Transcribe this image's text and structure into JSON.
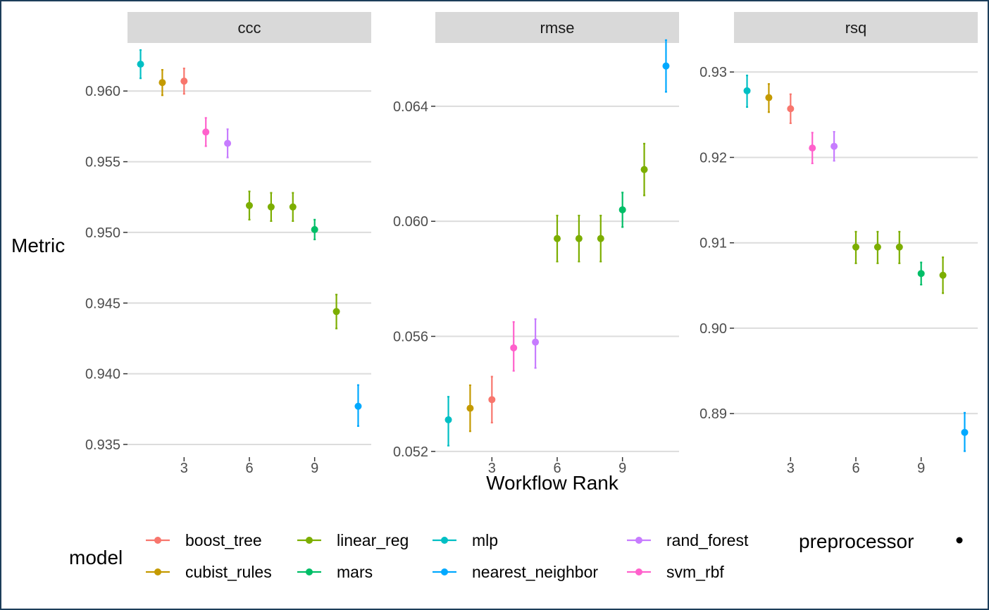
{
  "chart_data": {
    "type": "scatter",
    "xlabel": "Workflow Rank",
    "ylabel": "Metric",
    "x_ticks": [
      3,
      6,
      9
    ],
    "x_range": [
      0.4,
      11.6
    ],
    "legend": {
      "model_title": "model",
      "preprocessor_title": "preprocessor",
      "placement": "bottom",
      "entries": [
        {
          "name": "boost_tree",
          "color": "#F8766D"
        },
        {
          "name": "cubist_rules",
          "color": "#C49A00"
        },
        {
          "name": "linear_reg",
          "color": "#7CAE00"
        },
        {
          "name": "mars",
          "color": "#00BE67"
        },
        {
          "name": "mlp",
          "color": "#00BFC4"
        },
        {
          "name": "nearest_neighbor",
          "color": "#00A9FF"
        },
        {
          "name": "rand_forest",
          "color": "#C77CFF"
        },
        {
          "name": "svm_rbf",
          "color": "#FF61CC"
        }
      ]
    },
    "panels": [
      {
        "metric": "ccc",
        "ylim": [
          0.9341,
          0.9634
        ],
        "y_ticks": [
          0.935,
          0.94,
          0.945,
          0.95,
          0.955,
          0.96
        ],
        "y_tick_labels": [
          "0.935",
          "0.940",
          "0.945",
          "0.950",
          "0.955",
          "0.960"
        ],
        "points": [
          {
            "rank": 1,
            "model": "mlp",
            "mean": 0.9619,
            "lower": 0.9609,
            "upper": 0.9629
          },
          {
            "rank": 2,
            "model": "cubist_rules",
            "mean": 0.9606,
            "lower": 0.9597,
            "upper": 0.9615
          },
          {
            "rank": 3,
            "model": "boost_tree",
            "mean": 0.9607,
            "lower": 0.9598,
            "upper": 0.9616
          },
          {
            "rank": 4,
            "model": "svm_rbf",
            "mean": 0.9571,
            "lower": 0.9561,
            "upper": 0.9581
          },
          {
            "rank": 5,
            "model": "rand_forest",
            "mean": 0.9563,
            "lower": 0.9553,
            "upper": 0.9573
          },
          {
            "rank": 6,
            "model": "linear_reg",
            "mean": 0.9519,
            "lower": 0.9509,
            "upper": 0.9529
          },
          {
            "rank": 7,
            "model": "linear_reg",
            "mean": 0.9518,
            "lower": 0.9508,
            "upper": 0.9528
          },
          {
            "rank": 8,
            "model": "linear_reg",
            "mean": 0.9518,
            "lower": 0.9508,
            "upper": 0.9528
          },
          {
            "rank": 9,
            "model": "mars",
            "mean": 0.9502,
            "lower": 0.9495,
            "upper": 0.9509
          },
          {
            "rank": 10,
            "model": "linear_reg",
            "mean": 0.9444,
            "lower": 0.9432,
            "upper": 0.9456
          },
          {
            "rank": 11,
            "model": "nearest_neighbor",
            "mean": 0.9377,
            "lower": 0.9363,
            "upper": 0.9392
          }
        ]
      },
      {
        "metric": "rmse",
        "ylim": [
          0.0518,
          0.0662
        ],
        "y_ticks": [
          0.052,
          0.056,
          0.06,
          0.064
        ],
        "y_tick_labels": [
          "0.052",
          "0.056",
          "0.060",
          "0.064"
        ],
        "points": [
          {
            "rank": 1,
            "model": "mlp",
            "mean": 0.0531,
            "lower": 0.0522,
            "upper": 0.0539
          },
          {
            "rank": 2,
            "model": "cubist_rules",
            "mean": 0.0535,
            "lower": 0.0527,
            "upper": 0.0543
          },
          {
            "rank": 3,
            "model": "boost_tree",
            "mean": 0.0538,
            "lower": 0.053,
            "upper": 0.0546
          },
          {
            "rank": 4,
            "model": "svm_rbf",
            "mean": 0.0556,
            "lower": 0.0548,
            "upper": 0.0565
          },
          {
            "rank": 5,
            "model": "rand_forest",
            "mean": 0.0558,
            "lower": 0.0549,
            "upper": 0.0566
          },
          {
            "rank": 6,
            "model": "linear_reg",
            "mean": 0.0594,
            "lower": 0.0586,
            "upper": 0.0602
          },
          {
            "rank": 7,
            "model": "linear_reg",
            "mean": 0.0594,
            "lower": 0.0586,
            "upper": 0.0602
          },
          {
            "rank": 8,
            "model": "linear_reg",
            "mean": 0.0594,
            "lower": 0.0586,
            "upper": 0.0602
          },
          {
            "rank": 9,
            "model": "mars",
            "mean": 0.0604,
            "lower": 0.0598,
            "upper": 0.061
          },
          {
            "rank": 10,
            "model": "linear_reg",
            "mean": 0.0618,
            "lower": 0.0609,
            "upper": 0.0627
          },
          {
            "rank": 11,
            "model": "nearest_neighbor",
            "mean": 0.0654,
            "lower": 0.0645,
            "upper": 0.0663
          }
        ]
      },
      {
        "metric": "rsq",
        "ylim": [
          0.8849,
          0.9334
        ],
        "y_ticks": [
          0.89,
          0.9,
          0.91,
          0.92,
          0.93
        ],
        "y_tick_labels": [
          "0.89",
          "0.90",
          "0.91",
          "0.92",
          "0.93"
        ],
        "points": [
          {
            "rank": 1,
            "model": "mlp",
            "mean": 0.9278,
            "lower": 0.9259,
            "upper": 0.9296
          },
          {
            "rank": 2,
            "model": "cubist_rules",
            "mean": 0.927,
            "lower": 0.9253,
            "upper": 0.9286
          },
          {
            "rank": 3,
            "model": "boost_tree",
            "mean": 0.9257,
            "lower": 0.924,
            "upper": 0.9274
          },
          {
            "rank": 4,
            "model": "svm_rbf",
            "mean": 0.9211,
            "lower": 0.9193,
            "upper": 0.9229
          },
          {
            "rank": 5,
            "model": "rand_forest",
            "mean": 0.9213,
            "lower": 0.9196,
            "upper": 0.923
          },
          {
            "rank": 6,
            "model": "linear_reg",
            "mean": 0.9095,
            "lower": 0.9076,
            "upper": 0.9113
          },
          {
            "rank": 7,
            "model": "linear_reg",
            "mean": 0.9095,
            "lower": 0.9076,
            "upper": 0.9113
          },
          {
            "rank": 8,
            "model": "linear_reg",
            "mean": 0.9095,
            "lower": 0.9076,
            "upper": 0.9113
          },
          {
            "rank": 9,
            "model": "mars",
            "mean": 0.9064,
            "lower": 0.9051,
            "upper": 0.9077
          },
          {
            "rank": 10,
            "model": "linear_reg",
            "mean": 0.9062,
            "lower": 0.9041,
            "upper": 0.9083
          },
          {
            "rank": 11,
            "model": "nearest_neighbor",
            "mean": 0.8878,
            "lower": 0.8856,
            "upper": 0.8901
          }
        ]
      }
    ]
  }
}
